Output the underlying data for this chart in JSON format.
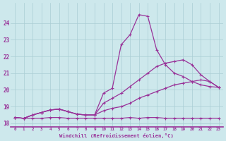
{
  "xlabel": "Windchill (Refroidissement éolien,°C)",
  "bg_color": "#cde8ec",
  "grid_color": "#aacdd4",
  "line_color": "#993399",
  "xmin": 0,
  "xmax": 23,
  "ymin": 18,
  "ymax": 25,
  "yticks": [
    18,
    19,
    20,
    21,
    22,
    23,
    24
  ],
  "series": [
    [
      18.35,
      18.3,
      18.3,
      18.3,
      18.35,
      18.35,
      18.3,
      18.3,
      18.3,
      18.3,
      18.3,
      18.3,
      18.3,
      18.35,
      18.3,
      18.35,
      18.35,
      18.3,
      18.3,
      18.3,
      18.3,
      18.3,
      18.3,
      18.3
    ],
    [
      18.35,
      18.3,
      18.5,
      18.65,
      18.8,
      18.85,
      18.7,
      18.55,
      18.5,
      18.5,
      18.75,
      18.9,
      19.0,
      19.2,
      19.5,
      19.7,
      19.9,
      20.1,
      20.3,
      20.4,
      20.5,
      20.6,
      20.5,
      20.15
    ],
    [
      18.35,
      18.3,
      18.5,
      18.65,
      18.8,
      18.85,
      18.7,
      18.55,
      18.5,
      18.5,
      19.2,
      19.5,
      19.8,
      20.2,
      20.6,
      21.0,
      21.4,
      21.6,
      21.7,
      21.8,
      21.5,
      20.9,
      20.5,
      20.15
    ],
    [
      18.35,
      18.3,
      18.5,
      18.65,
      18.8,
      18.85,
      18.7,
      18.55,
      18.5,
      18.5,
      19.8,
      20.1,
      22.7,
      23.3,
      24.5,
      24.4,
      22.4,
      21.5,
      21.0,
      20.8,
      20.5,
      20.3,
      20.2,
      20.15
    ]
  ]
}
